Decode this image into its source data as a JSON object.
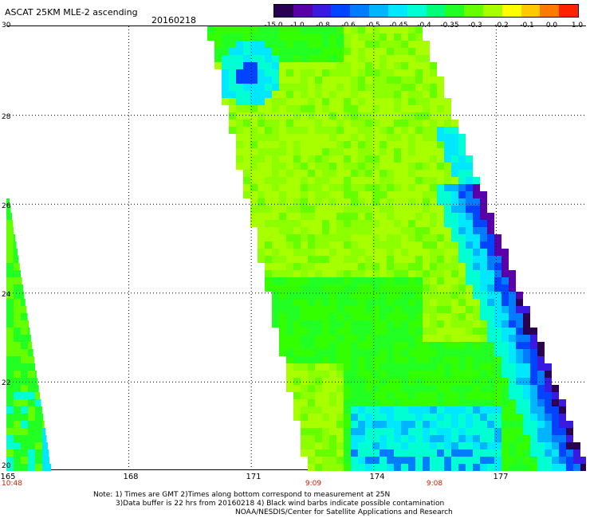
{
  "header": {
    "title": "ASCAT 25KM MLE-2 ascending",
    "date": "20160218"
  },
  "legend": {
    "colors": [
      "#2a0050",
      "#5a00a8",
      "#3a1ae0",
      "#0044ff",
      "#007cff",
      "#00b4ff",
      "#00e8ff",
      "#00ffd2",
      "#00ff78",
      "#22ff22",
      "#66ff00",
      "#a8ff00",
      "#ffff00",
      "#ffc800",
      "#ff7a00",
      "#ff2200"
    ],
    "ticks": [
      "-15.0",
      "-1.0",
      "-0.8",
      "-0.6",
      "-0.5",
      "-0.45",
      "-0.4",
      "-0.35",
      "-0.3",
      "-0.2",
      "-0.1",
      "0.0",
      "1.0"
    ]
  },
  "axes": {
    "lat_labels": [
      "30",
      "28",
      "26",
      "24",
      "22",
      "20"
    ],
    "lon_labels": [
      "165",
      "168",
      "171",
      "174",
      "177"
    ],
    "time_labels": [
      "10:48",
      "9:09",
      "9:08"
    ]
  },
  "notes": {
    "line1": "Note: 1) Times are GMT 2)Times along bottom correspond to measurement at 25N",
    "line2": "3)Data buffer is 22 hrs from 20160218 4) Black wind barbs indicate possible contamination",
    "line3": "NOAA/NESDIS/Center for Satellite Applications and Research"
  },
  "map_data": {
    "lon_range": [
      165,
      179.2
    ],
    "lat_range": [
      20,
      30
    ],
    "grid": "dotted every 3 deg lon and 2 deg lat",
    "swaths": [
      {
        "name": "western swath",
        "dominant_color": "green",
        "extent_lon": [
          165,
          166.1
        ],
        "extent_lat": [
          20,
          26.2
        ]
      },
      {
        "name": "central swath",
        "dominant_color": "yellow-green",
        "extent_lon": [
          170.0,
          179.2
        ],
        "extent_lat": [
          20,
          30
        ],
        "low_value_areas": [
          "east edge near 178-179E, 20-23N (blue/purple)",
          "south-central near 174-177E, 20-21N (cyan)",
          "northwest corner near 170.5E, 29.5N (blue)"
        ]
      }
    ]
  }
}
